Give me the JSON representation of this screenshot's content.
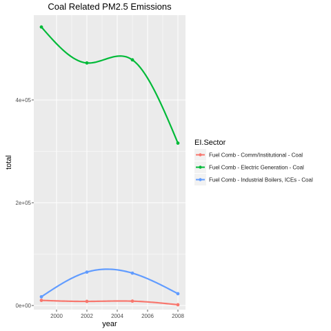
{
  "chart_data": {
    "type": "line",
    "title": "Coal Related PM2.5 Emissions",
    "xlabel": "year",
    "ylabel": "total",
    "xlim": [
      1998.5,
      2008.5
    ],
    "ylim": [
      -8000,
      565000
    ],
    "x_ticks": [
      2000,
      2002,
      2004,
      2006,
      2008
    ],
    "x_tick_labels": [
      "2000",
      "2002",
      "2004",
      "2006",
      "2008"
    ],
    "y_ticks": [
      0,
      200000,
      400000
    ],
    "y_tick_labels": [
      "0e+00",
      "2e+05",
      "4e+05"
    ],
    "grid": true,
    "legend_position": "right",
    "legend_title": "EI.Sector",
    "x": [
      1999,
      2002,
      2005,
      2008
    ],
    "series": [
      {
        "name": "Fuel Comb - Comm/Institutional - Coal",
        "color": "#F8766D",
        "values": [
          10000,
          8000,
          8500,
          1500
        ]
      },
      {
        "name": "Fuel Comb - Electric Generation - Coal",
        "color": "#00BA38",
        "values": [
          542000,
          472000,
          478000,
          316000
        ]
      },
      {
        "name": "Fuel Comb - Industrial Boilers, ICEs - Coal",
        "color": "#619CFF",
        "values": [
          17000,
          65000,
          63000,
          23000
        ]
      }
    ]
  }
}
